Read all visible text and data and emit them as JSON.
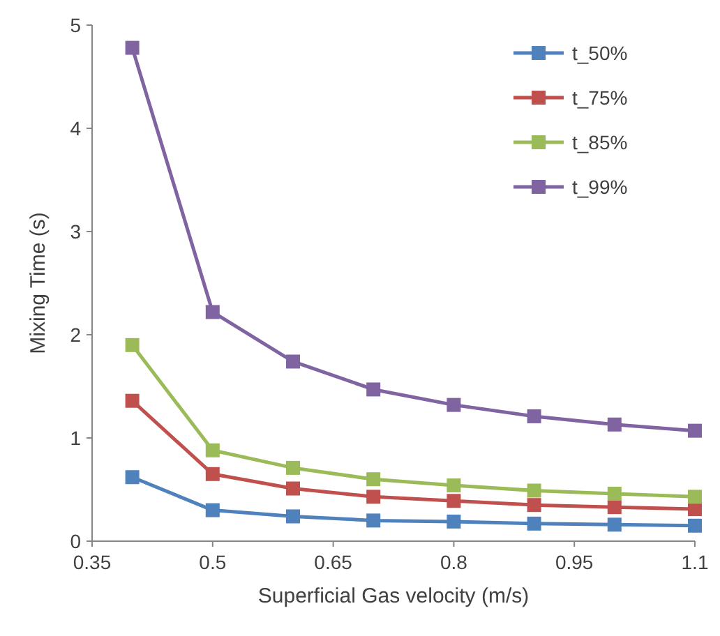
{
  "chart_data": {
    "type": "line",
    "xlabel": "Superficial Gas velocity (m/s)",
    "ylabel": "Mixing Time (s)",
    "x": [
      0.4,
      0.5,
      0.6,
      0.7,
      0.8,
      0.9,
      1.0,
      1.1
    ],
    "series": [
      {
        "name": "t_50%",
        "color": "#4f81bd",
        "values": [
          0.62,
          0.3,
          0.24,
          0.2,
          0.19,
          0.17,
          0.16,
          0.15
        ]
      },
      {
        "name": "t_75%",
        "color": "#c0504d",
        "values": [
          1.36,
          0.65,
          0.51,
          0.43,
          0.39,
          0.35,
          0.33,
          0.31
        ]
      },
      {
        "name": "t_85%",
        "color": "#9bbb59",
        "values": [
          1.9,
          0.88,
          0.71,
          0.6,
          0.54,
          0.49,
          0.46,
          0.43
        ]
      },
      {
        "name": "t_99%",
        "color": "#8064a2",
        "values": [
          4.78,
          2.22,
          1.74,
          1.47,
          1.32,
          1.21,
          1.13,
          1.07
        ]
      }
    ],
    "xlim": [
      0.35,
      1.1
    ],
    "xticks": [
      0.35,
      0.5,
      0.65,
      0.8,
      0.95,
      1.1
    ],
    "ylim": [
      0,
      5
    ],
    "yticks": [
      0,
      1,
      2,
      3,
      4,
      5
    ],
    "grid": false,
    "legend": "top right",
    "marker": "square",
    "line_style": "solid"
  }
}
